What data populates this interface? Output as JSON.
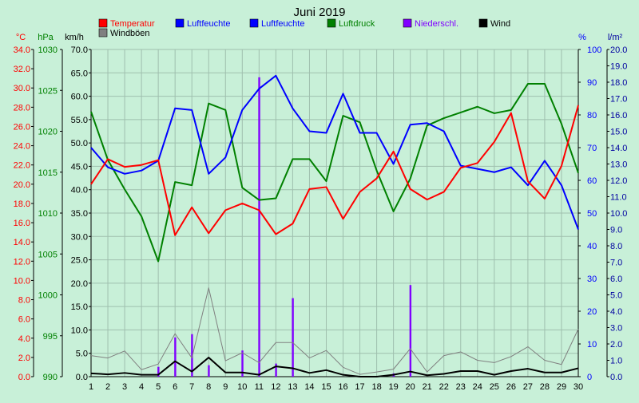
{
  "chart_data": {
    "type": "line",
    "title": "Juni 2019",
    "x": [
      1,
      2,
      3,
      4,
      5,
      6,
      7,
      8,
      9,
      10,
      11,
      12,
      13,
      14,
      15,
      16,
      17,
      18,
      19,
      20,
      21,
      22,
      23,
      24,
      25,
      26,
      27,
      28,
      29,
      30
    ],
    "grid": true,
    "legend_placement": "top",
    "axes": {
      "temperature": {
        "unit": "°C",
        "range": [
          0,
          34
        ],
        "color": "#ff0000",
        "ticks": [
          "0.0",
          "2.0",
          "4.0",
          "6.0",
          "8.0",
          "10.0",
          "12.0",
          "14.0",
          "16.0",
          "18.0",
          "20.0",
          "22.0",
          "24.0",
          "26.0",
          "28.0",
          "30.0",
          "32.0",
          "34.0"
        ]
      },
      "pressure": {
        "unit": "hPa",
        "range": [
          990,
          1030
        ],
        "color": "#008000",
        "ticks": [
          "990",
          "995",
          "1000",
          "1005",
          "1010",
          "1015",
          "1020",
          "1025",
          "1030"
        ]
      },
      "wind": {
        "unit": "km/h",
        "range": [
          0,
          70
        ],
        "color": "#000000",
        "ticks": [
          "0.0",
          "5.0",
          "10.0",
          "15.0",
          "20.0",
          "25.0",
          "30.0",
          "35.0",
          "40.0",
          "45.0",
          "50.0",
          "55.0",
          "60.0",
          "65.0",
          "70.0"
        ]
      },
      "humidity": {
        "unit": "%",
        "range": [
          0,
          100
        ],
        "color": "#0000ff",
        "ticks": [
          "0",
          "10",
          "20",
          "30",
          "40",
          "50",
          "60",
          "70",
          "80",
          "90",
          "100"
        ]
      },
      "precip": {
        "unit": "l/m²",
        "range": [
          0,
          20
        ],
        "color": "#0000a0",
        "ticks": [
          "0.0",
          "1.0",
          "2.0",
          "3.0",
          "4.0",
          "5.0",
          "6.0",
          "7.0",
          "8.0",
          "9.0",
          "10.0",
          "11.0",
          "12.0",
          "13.0",
          "14.0",
          "15.0",
          "16.0",
          "17.0",
          "18.0",
          "19.0",
          "20.0"
        ]
      }
    },
    "series": [
      {
        "name": "Temperatur",
        "axis": "temperature",
        "kind": "line",
        "color": "#ff0000",
        "values": [
          20.0,
          22.6,
          21.8,
          22.0,
          22.5,
          14.7,
          17.6,
          14.9,
          17.3,
          18.0,
          17.3,
          14.8,
          15.9,
          19.5,
          19.7,
          16.4,
          19.2,
          20.6,
          23.4,
          19.5,
          18.4,
          19.2,
          21.7,
          22.2,
          24.4,
          27.4,
          20.3,
          18.5,
          21.9,
          28.2
        ]
      },
      {
        "name": "Luftfeuchte",
        "axis": "humidity",
        "kind": "line",
        "color": "#0000ff",
        "values": [
          70,
          64,
          62,
          63,
          66,
          82,
          81.5,
          62,
          67,
          81.5,
          88,
          92,
          82,
          75,
          74.5,
          86.5,
          74.5,
          74.5,
          65,
          77,
          77.5,
          75,
          64.5,
          63.5,
          62.5,
          64,
          58.5,
          66,
          58.5,
          45
        ]
      },
      {
        "name": "Luftdruck",
        "axis": "pressure",
        "kind": "line",
        "color": "#008000",
        "values": [
          1022.4,
          1016.5,
          1012.9,
          1009.6,
          1004.1,
          1013.8,
          1013.4,
          1023.4,
          1022.6,
          1013.1,
          1011.6,
          1011.8,
          1016.6,
          1016.6,
          1013.9,
          1021.9,
          1021.1,
          1015.2,
          1010.2,
          1014.2,
          1020.7,
          1021.6,
          1022.3,
          1023.0,
          1022.2,
          1022.6,
          1025.8,
          1025.8,
          1020.9,
          1014.9
        ]
      },
      {
        "name": "Niederschl.",
        "axis": "precip",
        "kind": "bar",
        "color": "#8000ff",
        "values": [
          0,
          0,
          0,
          0,
          0.6,
          2.4,
          2.6,
          0.7,
          0,
          1.6,
          18.3,
          0.8,
          4.8,
          0,
          0,
          0,
          0,
          0,
          0.2,
          5.6,
          0,
          0,
          0,
          0,
          0,
          0,
          0,
          0,
          0,
          0
        ]
      },
      {
        "name": "Wind",
        "axis": "wind",
        "kind": "line",
        "color": "#000000",
        "values": [
          0.7,
          0.5,
          0.8,
          0.4,
          0.4,
          3.3,
          1.1,
          4.1,
          0.9,
          0.9,
          0.4,
          2.2,
          1.8,
          0.8,
          1.4,
          0.4,
          0,
          0,
          0.4,
          1.1,
          0.3,
          0.6,
          1.2,
          1.2,
          0.4,
          1.2,
          1.7,
          0.9,
          0.9,
          1.8
        ]
      },
      {
        "name": "Windböen",
        "axis": "wind",
        "kind": "line",
        "color": "#808080",
        "values": [
          4.5,
          4.0,
          5.5,
          1.5,
          2.7,
          9.2,
          4.0,
          19.0,
          3.4,
          5.1,
          3.0,
          7.3,
          7.3,
          4.0,
          5.6,
          2.0,
          0.5,
          1.0,
          1.6,
          6.0,
          1.0,
          4.5,
          5.3,
          3.5,
          3.0,
          4.3,
          6.4,
          3.5,
          2.6,
          10.2
        ]
      }
    ]
  }
}
